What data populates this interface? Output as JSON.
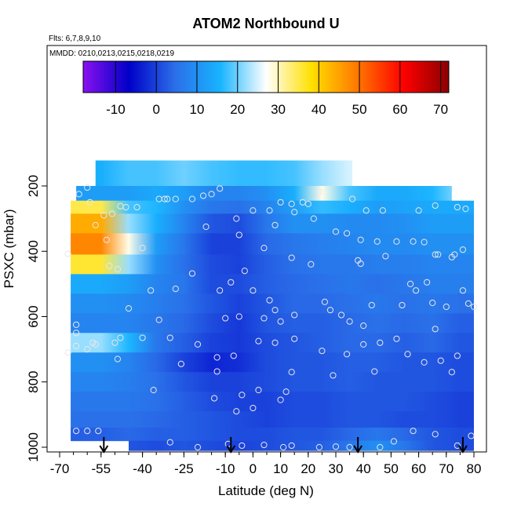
{
  "chart_data": {
    "type": "heatmap",
    "title": "ATOM2 Northbound U",
    "flights_note": "Flts: 6,7,8,9,10",
    "dates_note": "MMDD: 0210,0213,0215,0218,0219",
    "xlabel": "Latitude (deg N)",
    "ylabel": "PSXC (mbar)",
    "xlim": [
      -70,
      82
    ],
    "ylim": [
      1010,
      0
    ],
    "x_ticks": [
      -70,
      -55,
      -40,
      -25,
      -10,
      0,
      10,
      20,
      30,
      40,
      50,
      60,
      70,
      80
    ],
    "x_tick_labels": [
      "-70",
      "-55",
      "-40",
      "-25",
      "-10",
      "0",
      "10",
      "20",
      "30",
      "40",
      "50",
      "60",
      "70",
      "80"
    ],
    "y_ticks": [
      200,
      400,
      600,
      800,
      1000
    ],
    "y_tick_labels": [
      "200",
      "400",
      "600",
      "800",
      "1000"
    ],
    "colorbar": {
      "range": [
        -18,
        72
      ],
      "ticks": [
        -10,
        0,
        10,
        20,
        30,
        40,
        50,
        60,
        70
      ],
      "tick_labels": [
        "-10",
        "0",
        "10",
        "20",
        "30",
        "40",
        "50",
        "60",
        "70"
      ],
      "colors": [
        "#8a10f0",
        "#0000c8",
        "#2b6ee8",
        "#18b4ff",
        "#ffffff",
        "#ffe000",
        "#ff7800",
        "#ff0000",
        "#8b0000"
      ]
    },
    "pressure_levels": [
      170,
      230,
      260,
      310,
      380,
      440,
      500,
      560,
      620,
      680,
      740,
      800,
      860,
      920,
      960,
      1000
    ],
    "latitudes": [
      -55,
      -45,
      -35,
      -25,
      -15,
      -5,
      5,
      15,
      25,
      35,
      45,
      55,
      65,
      75
    ],
    "values": [
      [
        15,
        18,
        18,
        20,
        18,
        17,
        17,
        18,
        22,
        25,
        30,
        28,
        26,
        24
      ],
      [
        12,
        12,
        14,
        12,
        8,
        8,
        10,
        15,
        28,
        18,
        14,
        14,
        16,
        20
      ],
      [
        35,
        18,
        16,
        10,
        6,
        5,
        8,
        12,
        17,
        15,
        12,
        13,
        14,
        14
      ],
      [
        44,
        22,
        15,
        8,
        2,
        1,
        6,
        10,
        10,
        9,
        9,
        10,
        12,
        12
      ],
      [
        48,
        28,
        12,
        6,
        0,
        0,
        4,
        6,
        7,
        8,
        9,
        9,
        10,
        10
      ],
      [
        36,
        22,
        10,
        5,
        1,
        0,
        3,
        5,
        6,
        6,
        7,
        7,
        8,
        8
      ],
      [
        14,
        12,
        8,
        6,
        1,
        1,
        3,
        4,
        5,
        6,
        5,
        6,
        7,
        7
      ],
      [
        10,
        9,
        7,
        5,
        2,
        0,
        2,
        4,
        4,
        5,
        6,
        5,
        6,
        5
      ],
      [
        8,
        8,
        6,
        4,
        1,
        -1,
        2,
        3,
        3,
        4,
        5,
        4,
        5,
        3
      ],
      [
        22,
        16,
        6,
        3,
        0,
        -1,
        1,
        2,
        3,
        4,
        4,
        3,
        4,
        2
      ],
      [
        10,
        8,
        4,
        0,
        -3,
        -2,
        1,
        2,
        2,
        3,
        3,
        2,
        2,
        1
      ],
      [
        8,
        7,
        5,
        2,
        0,
        0,
        1,
        2,
        2,
        3,
        2,
        2,
        2,
        1
      ],
      [
        6,
        6,
        5,
        3,
        1,
        0,
        0,
        1,
        1,
        2,
        2,
        2,
        1,
        0
      ],
      [
        5,
        5,
        4,
        3,
        2,
        1,
        0,
        1,
        1,
        2,
        2,
        1,
        1,
        0
      ],
      [
        3,
        4,
        3,
        3,
        2,
        1,
        1,
        2,
        2,
        4,
        6,
        4,
        2,
        1
      ],
      [
        3,
        2,
        1,
        2,
        1,
        0,
        1,
        2,
        3,
        6,
        10,
        6,
        2,
        1
      ]
    ],
    "flight_direction_arrows_lat": [
      -54,
      -8,
      38,
      76
    ],
    "observation_points": [
      [
        -63,
        225
      ],
      [
        -60,
        205
      ],
      [
        -59,
        250
      ],
      [
        -57,
        320
      ],
      [
        -54,
        290
      ],
      [
        -51,
        285
      ],
      [
        -48,
        262
      ],
      [
        -46,
        265
      ],
      [
        -42,
        265
      ],
      [
        -34,
        240
      ],
      [
        -32,
        240
      ],
      [
        -31,
        240
      ],
      [
        -28,
        240
      ],
      [
        -22,
        240
      ],
      [
        -18,
        230
      ],
      [
        -15,
        225
      ],
      [
        -12,
        208
      ],
      [
        -6,
        300
      ],
      [
        0,
        275
      ],
      [
        6,
        275
      ],
      [
        10,
        250
      ],
      [
        14,
        255
      ],
      [
        18,
        250
      ],
      [
        20,
        255
      ],
      [
        24,
        218
      ],
      [
        36,
        240
      ],
      [
        41,
        275
      ],
      [
        47,
        275
      ],
      [
        60,
        275
      ],
      [
        66,
        260
      ],
      [
        74,
        265
      ],
      [
        77,
        270
      ],
      [
        -67,
        408
      ],
      [
        -53,
        365
      ],
      [
        -40,
        390
      ],
      [
        -17,
        325
      ],
      [
        -5,
        350
      ],
      [
        4,
        390
      ],
      [
        8,
        320
      ],
      [
        15,
        280
      ],
      [
        22,
        300
      ],
      [
        30,
        340
      ],
      [
        34,
        345
      ],
      [
        39,
        365
      ],
      [
        45,
        370
      ],
      [
        52,
        370
      ],
      [
        58,
        370
      ],
      [
        62,
        372
      ],
      [
        66,
        410
      ],
      [
        67,
        410
      ],
      [
        73,
        410
      ],
      [
        76,
        395
      ],
      [
        -49,
        455
      ],
      [
        -52,
        445
      ],
      [
        -37,
        520
      ],
      [
        -28,
        515
      ],
      [
        -22,
        468
      ],
      [
        -12,
        520
      ],
      [
        -8,
        495
      ],
      [
        -3,
        460
      ],
      [
        0,
        520
      ],
      [
        6,
        550
      ],
      [
        8,
        580
      ],
      [
        14,
        420
      ],
      [
        21,
        440
      ],
      [
        26,
        555
      ],
      [
        32,
        595
      ],
      [
        38,
        428
      ],
      [
        39,
        438
      ],
      [
        48,
        415
      ],
      [
        57,
        500
      ],
      [
        63,
        495
      ],
      [
        65,
        558
      ],
      [
        70,
        570
      ],
      [
        72,
        418
      ],
      [
        76,
        520
      ],
      [
        80,
        570
      ],
      [
        -64,
        625
      ],
      [
        -45,
        575
      ],
      [
        -34,
        610
      ],
      [
        -10,
        605
      ],
      [
        -5,
        600
      ],
      [
        4,
        605
      ],
      [
        10,
        615
      ],
      [
        15,
        595
      ],
      [
        28,
        580
      ],
      [
        35,
        615
      ],
      [
        40,
        628
      ],
      [
        43,
        565
      ],
      [
        54,
        565
      ],
      [
        59,
        520
      ],
      [
        66,
        638
      ],
      [
        78,
        560
      ],
      [
        -64,
        650
      ],
      [
        -60,
        700
      ],
      [
        -58,
        680
      ],
      [
        -50,
        680
      ],
      [
        -48,
        665
      ],
      [
        -40,
        665
      ],
      [
        -30,
        665
      ],
      [
        -20,
        685
      ],
      [
        -13,
        725
      ],
      [
        -7,
        720
      ],
      [
        2,
        675
      ],
      [
        8,
        680
      ],
      [
        15,
        668
      ],
      [
        25,
        705
      ],
      [
        34,
        715
      ],
      [
        40,
        685
      ],
      [
        46,
        680
      ],
      [
        52,
        668
      ],
      [
        56,
        715
      ],
      [
        62,
        740
      ],
      [
        68,
        735
      ],
      [
        74,
        720
      ],
      [
        -67,
        710
      ],
      [
        -64,
        690
      ],
      [
        -57,
        685
      ],
      [
        -49,
        730
      ],
      [
        -26,
        745
      ],
      [
        -13,
        768
      ],
      [
        14,
        770
      ],
      [
        29,
        780
      ],
      [
        44,
        768
      ],
      [
        72,
        770
      ],
      [
        -36,
        825
      ],
      [
        -14,
        850
      ],
      [
        -6,
        890
      ],
      [
        0,
        880
      ],
      [
        10,
        855
      ],
      [
        12,
        830
      ],
      [
        2,
        825
      ],
      [
        -4,
        840
      ],
      [
        -64,
        950
      ],
      [
        -60,
        950
      ],
      [
        -56,
        950
      ],
      [
        -30,
        985
      ],
      [
        -20,
        1000
      ],
      [
        -9,
        990
      ],
      [
        -4,
        995
      ],
      [
        4,
        993
      ],
      [
        11,
        1000
      ],
      [
        14,
        995
      ],
      [
        24,
        1000
      ],
      [
        30,
        998
      ],
      [
        35,
        1000
      ],
      [
        46,
        1000
      ],
      [
        51,
        982
      ],
      [
        58,
        950
      ],
      [
        66,
        960
      ],
      [
        74,
        995
      ],
      [
        79,
        965
      ]
    ]
  }
}
